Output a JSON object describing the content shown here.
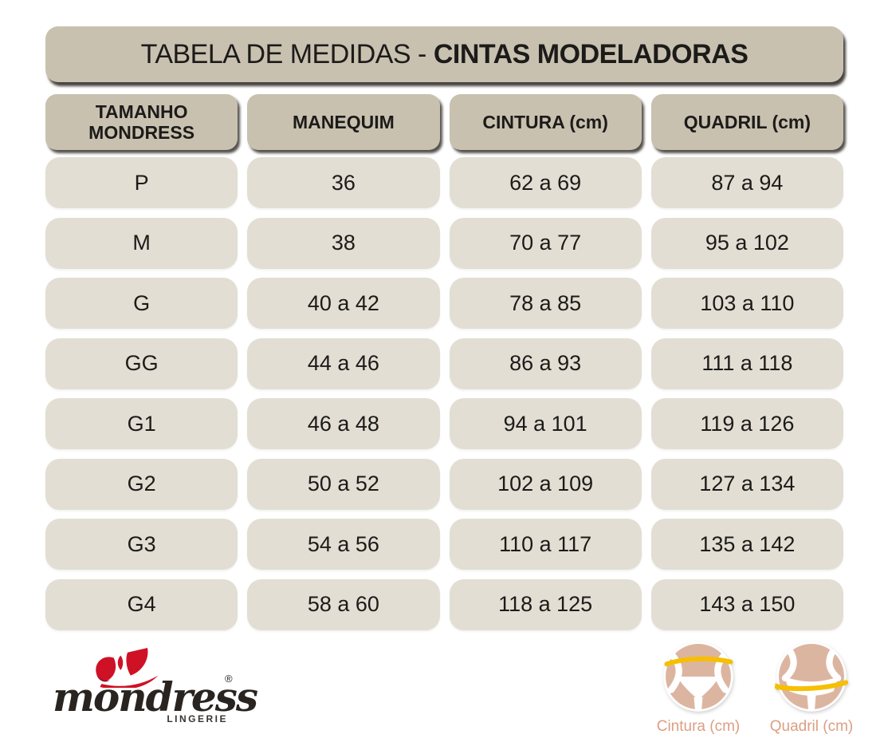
{
  "title": {
    "prefix": "TABELA DE MEDIDAS - ",
    "emphasis": "CINTAS MODELADORAS"
  },
  "table": {
    "headers": [
      {
        "line1": "TAMANHO",
        "line2": "MONDRESS"
      },
      {
        "line1": "MANEQUIM",
        "line2": ""
      },
      {
        "line1": "CINTURA (cm)",
        "line2": ""
      },
      {
        "line1": "QUADRIL (cm)",
        "line2": ""
      }
    ],
    "rows": [
      [
        "P",
        "36",
        "62 a 69",
        "87 a 94"
      ],
      [
        "M",
        "38",
        "70 a 77",
        "95 a 102"
      ],
      [
        "G",
        "40 a 42",
        "78 a 85",
        "103 a 110"
      ],
      [
        "GG",
        "44 a 46",
        "86 a 93",
        "111 a 118"
      ],
      [
        "G1",
        "46 a 48",
        "94 a 101",
        "119 a 126"
      ],
      [
        "G2",
        "50 a 52",
        "102 a 109",
        "127 a 134"
      ],
      [
        "G3",
        "54 a 56",
        "110 a 117",
        "135 a 142"
      ],
      [
        "G4",
        "58 a 60",
        "118 a 125",
        "143 a 150"
      ]
    ]
  },
  "brand": {
    "name": "mondress",
    "registered": "®",
    "tagline": "LINGERIE"
  },
  "legend": [
    {
      "icon": "waist-measure-icon",
      "label": "Cintura (cm)"
    },
    {
      "icon": "hip-measure-icon",
      "label": "Quadril (cm)"
    }
  ],
  "colors": {
    "header_fill": "#c9c1b0",
    "cell_fill": "#e2ded3",
    "text_dark": "#1c1b19",
    "brand_red": "#cf1126",
    "brand_red_dark": "#8c0e20",
    "figure_tan": "#dcb5a1",
    "tape_yellow": "#f6bf00",
    "legend_label": "#db9f83"
  }
}
